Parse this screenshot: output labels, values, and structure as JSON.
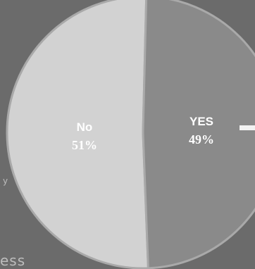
{
  "chart_data": {
    "type": "pie",
    "title": "",
    "slices": [
      {
        "label": "No",
        "value": 51,
        "value_label": "51%",
        "color": "#d2d2d2"
      },
      {
        "label": "YES",
        "value": 49,
        "value_label": "49%",
        "color": "#8a8a8a"
      }
    ],
    "label_placement": "inside",
    "label_color": "#ffffff"
  },
  "background": {
    "color": "#6b6b6b",
    "edge_text_bottom": "ess",
    "edge_text_side": "y"
  }
}
